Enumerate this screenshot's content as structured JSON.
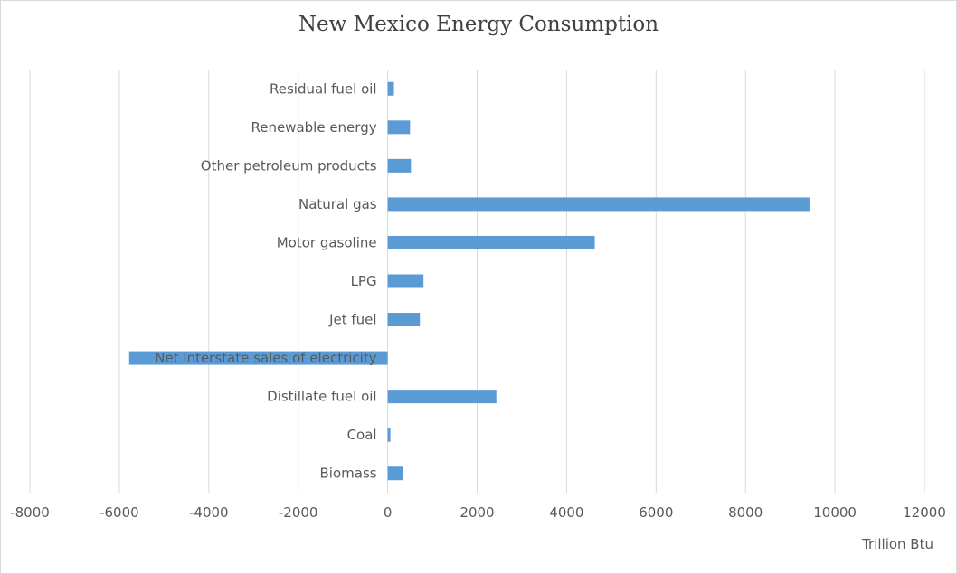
{
  "chart_data": {
    "type": "bar",
    "orientation": "horizontal",
    "title": "New Mexico Energy Consumption",
    "xlabel": "Trillion Btu",
    "ylabel": "",
    "xlim": [
      -8000,
      12000
    ],
    "x_ticks": [
      "-8000",
      "-6000",
      "-4000",
      "-2000",
      "0",
      "2000",
      "4000",
      "6000",
      "8000",
      "10000",
      "12000"
    ],
    "grid": "vertical",
    "legend": "none",
    "bar_color": "#5b9bd5",
    "categories": [
      "Residual fuel oil",
      "Renewable energy",
      "Other petroleum products",
      "Natural gas",
      "Motor gasoline",
      "LPG",
      "Jet fuel",
      "Net interstate sales of electricity",
      "Distillate fuel oil",
      "Coal",
      "Biomass"
    ],
    "values": [
      140,
      500,
      520,
      9430,
      4630,
      800,
      720,
      -5780,
      2430,
      60,
      340
    ]
  }
}
